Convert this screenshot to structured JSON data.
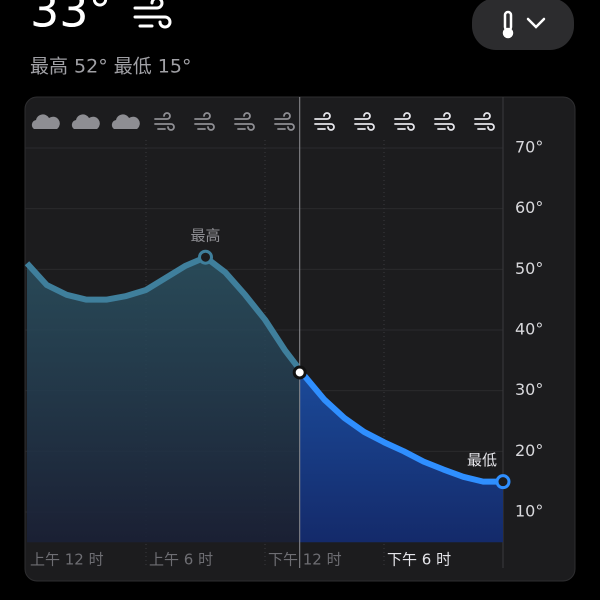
{
  "header": {
    "temperature": "33°",
    "subtitle": "最高 52° 最低 15°"
  },
  "chart_data": {
    "type": "line",
    "x": [
      0,
      1,
      2,
      3,
      4,
      5,
      6,
      7,
      8,
      9,
      10,
      11,
      12,
      13,
      14,
      15,
      16,
      17,
      18,
      19,
      20,
      21,
      22,
      23,
      24
    ],
    "series": [
      {
        "name": "温度",
        "color": "#2f8fff",
        "values": [
          51,
          47.4,
          45.8,
          45,
          45,
          45.6,
          46.6,
          48.6,
          50.6,
          52,
          49.5,
          45.8,
          41.7,
          36.7,
          32.4,
          28.5,
          25.5,
          23.2,
          21.5,
          20,
          18.3,
          17,
          15.8,
          15,
          15
        ]
      }
    ],
    "past_color": "#3f7f9c",
    "current": {
      "x": 13.75,
      "value": 33
    },
    "annotations": [
      {
        "text": "最高",
        "x": 9,
        "value": 52
      },
      {
        "text": "最低",
        "x": 24,
        "value": 15
      }
    ],
    "xlim": [
      0,
      24
    ],
    "xticks": [
      {
        "value": 0,
        "label": "上午 12 时"
      },
      {
        "value": 6,
        "label": "上午 6 时"
      },
      {
        "value": 12,
        "label": "下午 12 时"
      },
      {
        "value": 18,
        "label": "下午 6 时"
      }
    ],
    "ylim": [
      5,
      75
    ],
    "yticks": [
      {
        "value": 10,
        "label": "10°"
      },
      {
        "value": 20,
        "label": "20°"
      },
      {
        "value": 30,
        "label": "30°"
      },
      {
        "value": 40,
        "label": "40°"
      },
      {
        "value": 50,
        "label": "50°"
      },
      {
        "value": 60,
        "label": "60°"
      },
      {
        "value": 70,
        "label": "70°"
      }
    ],
    "grid": true
  }
}
